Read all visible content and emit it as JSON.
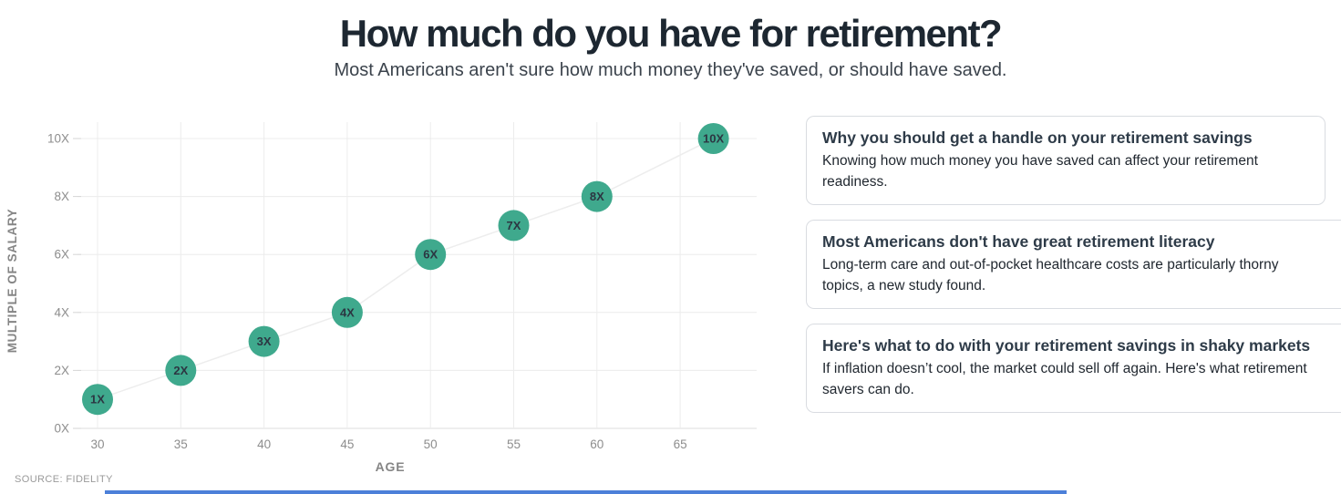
{
  "header": {
    "title": "How much do you have for retirement?",
    "subtitle": "Most Americans aren't sure how much money they've saved, or should have saved."
  },
  "chart_data": {
    "type": "scatter",
    "title": "",
    "xlabel": "AGE",
    "ylabel": "MULTIPLE OF SALARY",
    "x": [
      30,
      35,
      40,
      45,
      50,
      55,
      60,
      67
    ],
    "y": [
      1,
      2,
      3,
      4,
      6,
      7,
      8,
      10
    ],
    "point_labels": [
      "1X",
      "2X",
      "3X",
      "4X",
      "6X",
      "7X",
      "8X",
      "10X"
    ],
    "x_ticks": [
      "30",
      "35",
      "40",
      "45",
      "50",
      "55",
      "60",
      "65"
    ],
    "x_tick_values": [
      30,
      35,
      40,
      45,
      50,
      55,
      60,
      65
    ],
    "y_ticks": [
      0,
      2,
      4,
      6,
      8,
      10
    ],
    "y_tick_labels": [
      "0X",
      "2X",
      "4X",
      "6X",
      "8X",
      "10X"
    ],
    "xlim": [
      28.8,
      69.5
    ],
    "ylim": [
      0,
      10
    ],
    "grid": true,
    "legend": false,
    "point_color": "#3fa98d",
    "point_label_color": "#2c3642",
    "grid_color": "#ececec",
    "axis_line_color": "#dedede",
    "tick_text_color": "#8d8d8d",
    "axis_title_color": "#858585",
    "trend_line_color": "#ededed"
  },
  "source": "SOURCE: FIDELITY",
  "cards": [
    {
      "title": "Why you should get a handle on your retirement savings",
      "body": "Knowing how much money you have saved can affect your retirement readiness."
    },
    {
      "title": "Most Americans don't have great retirement literacy",
      "body": "Long-term care and out-of-pocket healthcare costs are particularly thorny topics, a new study found."
    },
    {
      "title": "Here's what to do with your retirement savings in shaky markets",
      "body": "If inflation doesn’t cool, the market could sell off again. Here's what retirement savers can do."
    }
  ],
  "footer_bar_color": "#4c80d9"
}
